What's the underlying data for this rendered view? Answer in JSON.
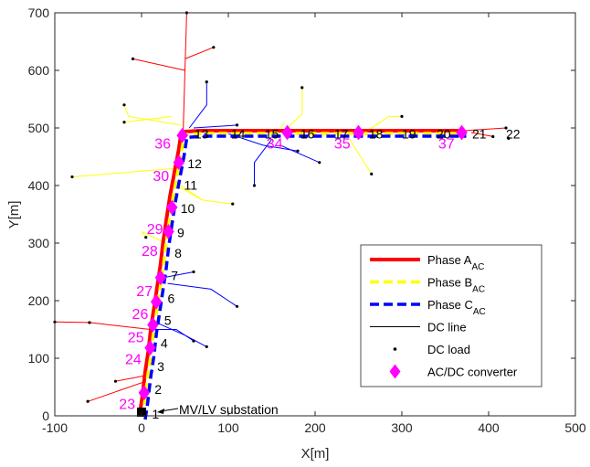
{
  "chart_data": {
    "type": "line",
    "xlabel": "X[m]",
    "ylabel": "Y[m]",
    "xlim": [
      -100,
      500
    ],
    "ylim": [
      0,
      700
    ],
    "xticks": [
      -100,
      0,
      100,
      200,
      300,
      400,
      500
    ],
    "yticks": [
      0,
      100,
      200,
      300,
      400,
      500,
      600,
      700
    ],
    "grid": false,
    "legend_position": "lower-right",
    "legend": [
      {
        "label": "Phase A",
        "sub": "AC",
        "style": "solid",
        "color": "#ff0000"
      },
      {
        "label": "Phase B",
        "sub": "AC",
        "style": "dashed",
        "color": "#ffff00"
      },
      {
        "label": "Phase C",
        "sub": "AC",
        "style": "dashed",
        "color": "#0000ff"
      },
      {
        "label": "DC line",
        "sub": "",
        "style": "thin",
        "color": "#000000"
      },
      {
        "label": "DC load",
        "sub": "",
        "style": "dot",
        "color": "#000000"
      },
      {
        "label": "AC/DC converter",
        "sub": "",
        "style": "diamond",
        "color": "#ff00ff"
      }
    ],
    "annotation": "MV/LV substation",
    "substation": {
      "x": 0,
      "y": 0
    },
    "ac_main_path": [
      {
        "x": 0,
        "y": 0
      },
      {
        "x": 3,
        "y": 30
      },
      {
        "x": 6,
        "y": 70
      },
      {
        "x": 10,
        "y": 110
      },
      {
        "x": 13,
        "y": 150
      },
      {
        "x": 17,
        "y": 190
      },
      {
        "x": 20,
        "y": 220
      },
      {
        "x": 24,
        "y": 260
      },
      {
        "x": 27,
        "y": 300
      },
      {
        "x": 31,
        "y": 340
      },
      {
        "x": 35,
        "y": 380
      },
      {
        "x": 40,
        "y": 420
      },
      {
        "x": 45,
        "y": 460
      },
      {
        "x": 48,
        "y": 490
      },
      {
        "x": 70,
        "y": 492
      },
      {
        "x": 110,
        "y": 492
      },
      {
        "x": 150,
        "y": 492
      },
      {
        "x": 200,
        "y": 492
      },
      {
        "x": 250,
        "y": 492
      },
      {
        "x": 300,
        "y": 492
      },
      {
        "x": 350,
        "y": 492
      },
      {
        "x": 370,
        "y": 492
      }
    ],
    "bus_labels": [
      {
        "text": "1",
        "x": 12,
        "y": -5
      },
      {
        "text": "2",
        "x": 15,
        "y": 38
      },
      {
        "text": "3",
        "x": 18,
        "y": 78
      },
      {
        "text": "4",
        "x": 22,
        "y": 118
      },
      {
        "text": "5",
        "x": 26,
        "y": 158
      },
      {
        "text": "6",
        "x": 30,
        "y": 196
      },
      {
        "text": "7",
        "x": 34,
        "y": 236
      },
      {
        "text": "8",
        "x": 38,
        "y": 275
      },
      {
        "text": "9",
        "x": 41,
        "y": 310
      },
      {
        "text": "10",
        "x": 45,
        "y": 352
      },
      {
        "text": "11",
        "x": 49,
        "y": 393
      },
      {
        "text": "12",
        "x": 53,
        "y": 430
      },
      {
        "text": "13",
        "x": 61,
        "y": 482
      },
      {
        "text": "14",
        "x": 103,
        "y": 482
      },
      {
        "text": "15",
        "x": 142,
        "y": 482
      },
      {
        "text": "16",
        "x": 183,
        "y": 482
      },
      {
        "text": "17",
        "x": 222,
        "y": 482
      },
      {
        "text": "18",
        "x": 262,
        "y": 482
      },
      {
        "text": "19",
        "x": 300,
        "y": 482
      },
      {
        "text": "20",
        "x": 340,
        "y": 482
      },
      {
        "text": "21",
        "x": 381,
        "y": 482
      },
      {
        "text": "22",
        "x": 420,
        "y": 482
      }
    ],
    "converter_labels": [
      {
        "text": "23",
        "x": -26,
        "y": 12
      },
      {
        "text": "24",
        "x": -19,
        "y": 90
      },
      {
        "text": "25",
        "x": -16,
        "y": 128
      },
      {
        "text": "26",
        "x": -11,
        "y": 168
      },
      {
        "text": "27",
        "x": -6,
        "y": 208
      },
      {
        "text": "28",
        "x": 0,
        "y": 278
      },
      {
        "text": "29",
        "x": 6,
        "y": 316
      },
      {
        "text": "30",
        "x": 13,
        "y": 408
      },
      {
        "text": "36",
        "x": 15,
        "y": 464
      },
      {
        "text": "34",
        "x": 144,
        "y": 464
      },
      {
        "text": "35",
        "x": 222,
        "y": 464
      },
      {
        "text": "37",
        "x": 342,
        "y": 464
      }
    ],
    "converters": [
      {
        "x": 3,
        "y": 40
      },
      {
        "x": 10,
        "y": 118
      },
      {
        "x": 13,
        "y": 158
      },
      {
        "x": 17,
        "y": 198
      },
      {
        "x": 22,
        "y": 240
      },
      {
        "x": 31,
        "y": 320
      },
      {
        "x": 35,
        "y": 362
      },
      {
        "x": 43,
        "y": 440
      },
      {
        "x": 47,
        "y": 487
      },
      {
        "x": 168,
        "y": 492
      },
      {
        "x": 250,
        "y": 492
      },
      {
        "x": 369,
        "y": 492
      }
    ],
    "dc_lines": [
      {
        "color": "#ff0000",
        "points": [
          {
            "x": 48,
            "y": 495
          },
          {
            "x": 50,
            "y": 600
          },
          {
            "x": 52,
            "y": 700
          }
        ]
      },
      {
        "color": "#ff0000",
        "points": [
          {
            "x": 50,
            "y": 600
          },
          {
            "x": -10,
            "y": 620
          }
        ]
      },
      {
        "color": "#ff0000",
        "points": [
          {
            "x": 50,
            "y": 620
          },
          {
            "x": 83,
            "y": 640
          }
        ]
      },
      {
        "color": "#ff0000",
        "points": [
          {
            "x": 5,
            "y": 60
          },
          {
            "x": -62,
            "y": 25
          }
        ]
      },
      {
        "color": "#ff0000",
        "points": [
          {
            "x": 5,
            "y": 70
          },
          {
            "x": -30,
            "y": 60
          }
        ]
      },
      {
        "color": "#ff0000",
        "points": [
          {
            "x": 10,
            "y": 150
          },
          {
            "x": -60,
            "y": 162
          },
          {
            "x": -100,
            "y": 163
          }
        ]
      },
      {
        "color": "#ff0000",
        "points": [
          {
            "x": 370,
            "y": 495
          },
          {
            "x": 420,
            "y": 500
          }
        ]
      },
      {
        "color": "#ff0000",
        "points": [
          {
            "x": 380,
            "y": 492
          },
          {
            "x": 405,
            "y": 485
          }
        ]
      },
      {
        "color": "#ffff00",
        "points": [
          {
            "x": 45,
            "y": 505
          },
          {
            "x": -15,
            "y": 520
          },
          {
            "x": -20,
            "y": 540
          }
        ]
      },
      {
        "color": "#ffff00",
        "points": [
          {
            "x": 35,
            "y": 520
          },
          {
            "x": -20,
            "y": 510
          }
        ]
      },
      {
        "color": "#ffff00",
        "points": [
          {
            "x": 40,
            "y": 430
          },
          {
            "x": -80,
            "y": 415
          }
        ]
      },
      {
        "color": "#ffff00",
        "points": [
          {
            "x": 40,
            "y": 400
          },
          {
            "x": 70,
            "y": 375
          },
          {
            "x": 105,
            "y": 368
          }
        ]
      },
      {
        "color": "#ffff00",
        "points": [
          {
            "x": 45,
            "y": 400
          },
          {
            "x": 70,
            "y": 375
          }
        ]
      },
      {
        "color": "#ffff00",
        "points": [
          {
            "x": 28,
            "y": 300
          },
          {
            "x": 0,
            "y": 320
          },
          {
            "x": 5,
            "y": 310
          }
        ]
      },
      {
        "color": "#ffff00",
        "points": [
          {
            "x": 165,
            "y": 495
          },
          {
            "x": 185,
            "y": 525
          },
          {
            "x": 185,
            "y": 570
          }
        ]
      },
      {
        "color": "#ffff00",
        "points": [
          {
            "x": 160,
            "y": 500
          },
          {
            "x": 165,
            "y": 510
          }
        ]
      },
      {
        "color": "#ffff00",
        "points": [
          {
            "x": 240,
            "y": 480
          },
          {
            "x": 265,
            "y": 420
          }
        ]
      },
      {
        "color": "#ffff00",
        "points": [
          {
            "x": 260,
            "y": 495
          },
          {
            "x": 285,
            "y": 520
          },
          {
            "x": 300,
            "y": 520
          }
        ]
      },
      {
        "color": "#0000ff",
        "points": [
          {
            "x": 55,
            "y": 500
          },
          {
            "x": 75,
            "y": 540
          },
          {
            "x": 75,
            "y": 580
          }
        ]
      },
      {
        "color": "#0000ff",
        "points": [
          {
            "x": 60,
            "y": 500
          },
          {
            "x": 110,
            "y": 505
          }
        ]
      },
      {
        "color": "#0000ff",
        "points": [
          {
            "x": 100,
            "y": 490
          },
          {
            "x": 140,
            "y": 470
          },
          {
            "x": 180,
            "y": 460
          }
        ]
      },
      {
        "color": "#0000ff",
        "points": [
          {
            "x": 150,
            "y": 480
          },
          {
            "x": 130,
            "y": 440
          },
          {
            "x": 130,
            "y": 400
          }
        ]
      },
      {
        "color": "#0000ff",
        "points": [
          {
            "x": 160,
            "y": 470
          },
          {
            "x": 205,
            "y": 440
          }
        ]
      },
      {
        "color": "#0000ff",
        "points": [
          {
            "x": 30,
            "y": 230
          },
          {
            "x": 80,
            "y": 220
          },
          {
            "x": 110,
            "y": 190
          }
        ]
      },
      {
        "color": "#0000ff",
        "points": [
          {
            "x": 25,
            "y": 240
          },
          {
            "x": 60,
            "y": 250
          }
        ]
      },
      {
        "color": "#0000ff",
        "points": [
          {
            "x": 20,
            "y": 160
          },
          {
            "x": 50,
            "y": 140
          },
          {
            "x": 75,
            "y": 120
          }
        ]
      },
      {
        "color": "#0000ff",
        "points": [
          {
            "x": 15,
            "y": 150
          },
          {
            "x": 40,
            "y": 150
          },
          {
            "x": 60,
            "y": 130
          }
        ]
      }
    ],
    "dc_loads": [
      {
        "x": 52,
        "y": 700
      },
      {
        "x": -10,
        "y": 620
      },
      {
        "x": 83,
        "y": 640
      },
      {
        "x": -62,
        "y": 25
      },
      {
        "x": -30,
        "y": 60
      },
      {
        "x": -100,
        "y": 163
      },
      {
        "x": -60,
        "y": 162
      },
      {
        "x": 420,
        "y": 500
      },
      {
        "x": 405,
        "y": 485
      },
      {
        "x": -20,
        "y": 540
      },
      {
        "x": -20,
        "y": 510
      },
      {
        "x": -80,
        "y": 415
      },
      {
        "x": 105,
        "y": 368
      },
      {
        "x": 5,
        "y": 310
      },
      {
        "x": 185,
        "y": 570
      },
      {
        "x": 265,
        "y": 420
      },
      {
        "x": 300,
        "y": 520
      },
      {
        "x": 75,
        "y": 580
      },
      {
        "x": 110,
        "y": 505
      },
      {
        "x": 180,
        "y": 460
      },
      {
        "x": 130,
        "y": 400
      },
      {
        "x": 205,
        "y": 440
      },
      {
        "x": 110,
        "y": 190
      },
      {
        "x": 60,
        "y": 250
      },
      {
        "x": 75,
        "y": 120
      },
      {
        "x": 60,
        "y": 130
      },
      {
        "x": 423,
        "y": 482
      }
    ]
  }
}
